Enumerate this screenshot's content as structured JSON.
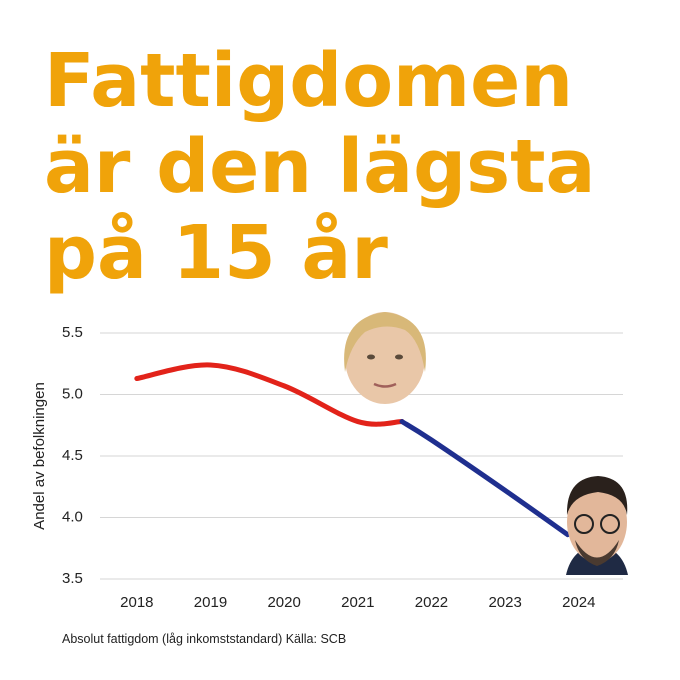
{
  "chart_data": {
    "type": "line",
    "title": [
      "Fattigdomen",
      "är den lägsta",
      "på 15 år"
    ],
    "y_label": "Andel av befolkningen",
    "note": "Absolut fattigdom (låg inkomststandard) Källa: SCB",
    "x": [
      2018,
      2019,
      2020,
      2021,
      2021.6,
      2022,
      2023,
      2023.85
    ],
    "series": [
      {
        "color": "#e2231a",
        "values": [
          5.13,
          5.24,
          5.07,
          4.78,
          4.78,
          null,
          null,
          null
        ]
      },
      {
        "color": "#1f2f8f",
        "values": [
          null,
          null,
          null,
          null,
          4.78,
          4.63,
          4.22,
          3.86
        ]
      }
    ],
    "xlim": [
      2017.5,
      2024.6
    ],
    "xticks": [
      2018,
      2019,
      2020,
      2021,
      2022,
      2023,
      2024
    ],
    "ylim": [
      3.5,
      5.5
    ],
    "yticks": [
      3.5,
      {
        "value": 4,
        "label": "4.0"
      },
      4.5,
      {
        "value": 5,
        "label": "5.0"
      },
      5.5
    ],
    "grid": true
  }
}
